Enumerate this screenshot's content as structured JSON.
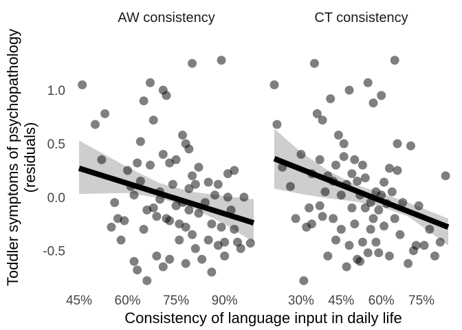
{
  "chart_data": {
    "type": "scatter",
    "xlabel": "Consistency of language input in daily life",
    "ylabel": "Toddler symptoms of psychopathology",
    "ylabel_line2": "(residuals)",
    "ylim": [
      -0.83,
      1.38
    ],
    "yticks": [
      1.0,
      0.5,
      0.0,
      -0.5
    ],
    "ytick_labels": [
      "1.0",
      "0.5",
      "0.0",
      "-0.5"
    ],
    "grid": false,
    "point_color": "#000000",
    "point_opacity": 0.5,
    "line_color": "#000000",
    "band_color": "#bdbdbd",
    "panels": [
      {
        "title": "AW consistency",
        "xlim": [
          0.45,
          0.99
        ],
        "xticks": [
          0.45,
          0.6,
          0.75,
          0.9
        ],
        "xtick_labels": [
          "45%",
          "60%",
          "75%",
          "90%"
        ],
        "fit": {
          "x": [
            0.45,
            0.99
          ],
          "y": [
            0.27,
            -0.24
          ]
        },
        "ci_upper": [
          [
            0.45,
            0.53
          ],
          [
            0.6,
            0.28
          ],
          [
            0.7,
            0.13
          ],
          [
            0.8,
            0.05
          ],
          [
            0.9,
            0.01
          ],
          [
            0.99,
            -0.02
          ]
        ],
        "ci_lower": [
          [
            0.45,
            0.03
          ],
          [
            0.6,
            0.04
          ],
          [
            0.7,
            -0.01
          ],
          [
            0.8,
            -0.1
          ],
          [
            0.9,
            -0.25
          ],
          [
            0.99,
            -0.42
          ]
        ],
        "points": [
          [
            0.46,
            1.05
          ],
          [
            0.5,
            0.68
          ],
          [
            0.52,
            0.35
          ],
          [
            0.53,
            0.78
          ],
          [
            0.55,
            -0.28
          ],
          [
            0.56,
            -0.05
          ],
          [
            0.57,
            -0.2
          ],
          [
            0.58,
            -0.4
          ],
          [
            0.59,
            -0.22
          ],
          [
            0.6,
            0.25
          ],
          [
            0.61,
            0.1
          ],
          [
            0.62,
            0.02
          ],
          [
            0.62,
            -0.6
          ],
          [
            0.63,
            0.32
          ],
          [
            0.63,
            -0.68
          ],
          [
            0.64,
            0.52
          ],
          [
            0.64,
            0.15
          ],
          [
            0.65,
            0.9
          ],
          [
            0.65,
            -0.3
          ],
          [
            0.66,
            -0.78
          ],
          [
            0.66,
            -0.12
          ],
          [
            0.67,
            1.07
          ],
          [
            0.67,
            0.3
          ],
          [
            0.68,
            0.72
          ],
          [
            0.68,
            -0.1
          ],
          [
            0.69,
            -0.18
          ],
          [
            0.69,
            -0.55
          ],
          [
            0.7,
            0.05
          ],
          [
            0.7,
            -0.02
          ],
          [
            0.71,
            1.0
          ],
          [
            0.71,
            0.4
          ],
          [
            0.71,
            -0.65
          ],
          [
            0.72,
            0.95
          ],
          [
            0.72,
            -0.2
          ],
          [
            0.73,
            0.32
          ],
          [
            0.73,
            -0.22
          ],
          [
            0.73,
            -0.58
          ],
          [
            0.74,
            0.12
          ],
          [
            0.75,
            0.35
          ],
          [
            0.75,
            -0.08
          ],
          [
            0.76,
            -0.25
          ],
          [
            0.76,
            -0.4
          ],
          [
            0.77,
            0.58
          ],
          [
            0.77,
            -0.05
          ],
          [
            0.78,
            0.5
          ],
          [
            0.78,
            -0.28
          ],
          [
            0.78,
            -0.62
          ],
          [
            0.79,
            0.45
          ],
          [
            0.79,
            0.08
          ],
          [
            0.79,
            -0.12
          ],
          [
            0.8,
            1.25
          ],
          [
            0.8,
            0.2
          ],
          [
            0.8,
            -0.35
          ],
          [
            0.81,
            0.12
          ],
          [
            0.81,
            -0.48
          ],
          [
            0.82,
            0.28
          ],
          [
            0.82,
            -0.15
          ],
          [
            0.83,
            -0.58
          ],
          [
            0.84,
            -0.05
          ],
          [
            0.85,
            -0.4
          ],
          [
            0.85,
            0.14
          ],
          [
            0.86,
            -0.25
          ],
          [
            0.86,
            -0.7
          ],
          [
            0.87,
            0.02
          ],
          [
            0.88,
            0.12
          ],
          [
            0.88,
            -0.45
          ],
          [
            0.89,
            1.28
          ],
          [
            0.89,
            -0.28
          ],
          [
            0.9,
            -0.55
          ],
          [
            0.9,
            -0.42
          ],
          [
            0.91,
            0.22
          ],
          [
            0.91,
            0.0
          ],
          [
            0.92,
            -0.12
          ],
          [
            0.93,
            0.25
          ],
          [
            0.93,
            -0.3
          ],
          [
            0.94,
            -0.42
          ],
          [
            0.95,
            -0.48
          ],
          [
            0.96,
            0.0
          ],
          [
            0.98,
            -0.43
          ]
        ]
      },
      {
        "title": "CT consistency",
        "xlim": [
          0.2,
          0.85
        ],
        "xticks": [
          0.3,
          0.45,
          0.6,
          0.75
        ],
        "xtick_labels": [
          "30%",
          "45%",
          "60%",
          "75%"
        ],
        "fit": {
          "x": [
            0.2,
            0.85
          ],
          "y": [
            0.36,
            -0.28
          ]
        },
        "ci_upper": [
          [
            0.2,
            0.64
          ],
          [
            0.3,
            0.42
          ],
          [
            0.4,
            0.25
          ],
          [
            0.5,
            0.12
          ],
          [
            0.6,
            0.04
          ],
          [
            0.7,
            -0.05
          ],
          [
            0.85,
            -0.2
          ]
        ],
        "ci_lower": [
          [
            0.2,
            0.08
          ],
          [
            0.3,
            0.03
          ],
          [
            0.4,
            -0.01
          ],
          [
            0.5,
            -0.04
          ],
          [
            0.6,
            -0.09
          ],
          [
            0.7,
            -0.18
          ],
          [
            0.85,
            -0.45
          ]
        ],
        "points": [
          [
            0.2,
            1.05
          ],
          [
            0.21,
            0.68
          ],
          [
            0.23,
            0.28
          ],
          [
            0.26,
            0.1
          ],
          [
            0.28,
            -0.2
          ],
          [
            0.3,
            0.4
          ],
          [
            0.31,
            -0.78
          ],
          [
            0.32,
            -0.28
          ],
          [
            0.33,
            -0.1
          ],
          [
            0.34,
            0.22
          ],
          [
            0.34,
            -0.25
          ],
          [
            0.35,
            1.25
          ],
          [
            0.36,
            0.78
          ],
          [
            0.37,
            0.35
          ],
          [
            0.37,
            -0.08
          ],
          [
            0.38,
            0.72
          ],
          [
            0.38,
            -0.18
          ],
          [
            0.39,
            0.05
          ],
          [
            0.4,
            0.2
          ],
          [
            0.4,
            -0.55
          ],
          [
            0.41,
            0.92
          ],
          [
            0.42,
            0.15
          ],
          [
            0.42,
            -0.2
          ],
          [
            0.43,
            -0.4
          ],
          [
            0.43,
            0.3
          ],
          [
            0.44,
            0.58
          ],
          [
            0.45,
            0.02
          ],
          [
            0.45,
            -0.3
          ],
          [
            0.46,
            0.38
          ],
          [
            0.46,
            0.5
          ],
          [
            0.47,
            -0.65
          ],
          [
            0.47,
            0.12
          ],
          [
            0.48,
            -0.45
          ],
          [
            0.48,
            1.0
          ],
          [
            0.49,
            -0.1
          ],
          [
            0.49,
            0.22
          ],
          [
            0.5,
            0.35
          ],
          [
            0.5,
            -0.25
          ],
          [
            0.51,
            -0.58
          ],
          [
            0.51,
            0.15
          ],
          [
            0.52,
            0.02
          ],
          [
            0.52,
            -0.6
          ],
          [
            0.53,
            -0.42
          ],
          [
            0.53,
            0.3
          ],
          [
            0.54,
            0.18
          ],
          [
            0.54,
            -0.1
          ],
          [
            0.55,
            -0.52
          ],
          [
            0.55,
            1.07
          ],
          [
            0.56,
            -0.05
          ],
          [
            0.56,
            -0.3
          ],
          [
            0.57,
            0.88
          ],
          [
            0.57,
            -0.2
          ],
          [
            0.58,
            0.05
          ],
          [
            0.58,
            -0.42
          ],
          [
            0.59,
            -0.12
          ],
          [
            0.59,
            -0.52
          ],
          [
            0.6,
            0.95
          ],
          [
            0.6,
            0.02
          ],
          [
            0.61,
            0.14
          ],
          [
            0.61,
            -0.27
          ],
          [
            0.62,
            -0.06
          ],
          [
            0.63,
            0.27
          ],
          [
            0.63,
            -0.55
          ],
          [
            0.64,
            0.05
          ],
          [
            0.65,
            1.28
          ],
          [
            0.65,
            -0.2
          ],
          [
            0.66,
            0.5
          ],
          [
            0.66,
            0.25
          ],
          [
            0.67,
            -0.35
          ],
          [
            0.68,
            -0.05
          ],
          [
            0.7,
            -0.62
          ],
          [
            0.71,
            0.48
          ],
          [
            0.72,
            -0.5
          ],
          [
            0.73,
            -0.45
          ],
          [
            0.74,
            -0.08
          ],
          [
            0.76,
            -0.45
          ],
          [
            0.78,
            -0.3
          ],
          [
            0.8,
            -0.55
          ],
          [
            0.82,
            -0.42
          ],
          [
            0.84,
            0.2
          ]
        ]
      }
    ]
  }
}
